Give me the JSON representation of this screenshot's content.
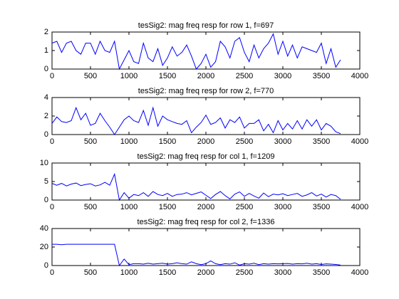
{
  "chart_data": [
    {
      "type": "line",
      "title": "tesSig2: mag freq resp for row 1, f=697",
      "x": [
        0,
        62.5,
        125,
        187.5,
        250,
        312.5,
        375,
        437.5,
        500,
        562.5,
        625,
        687.5,
        750,
        812.5,
        875,
        937.5,
        1000,
        1062.5,
        1125,
        1187.5,
        1250,
        1312.5,
        1375,
        1437.5,
        1500,
        1562.5,
        1625,
        1687.5,
        1750,
        1812.5,
        1875,
        1937.5,
        2000,
        2062.5,
        2125,
        2187.5,
        2250,
        2312.5,
        2375,
        2437.5,
        2500,
        2562.5,
        2625,
        2687.5,
        2750,
        2812.5,
        2875,
        2937.5,
        3000,
        3062.5,
        3125,
        3187.5,
        3250,
        3312.5,
        3375,
        3437.5,
        3500,
        3562.5,
        3625,
        3687.5,
        3750
      ],
      "series": [
        {
          "color": "#0000ff",
          "values": [
            1.4,
            1.5,
            0.9,
            1.4,
            1.5,
            1.0,
            0.8,
            1.4,
            1.4,
            0.8,
            1.5,
            1.0,
            0.9,
            1.5,
            0.0,
            0.5,
            1.0,
            0.4,
            0.3,
            1.4,
            0.6,
            0.4,
            1.1,
            0.2,
            0.6,
            1.2,
            0.7,
            0.9,
            1.3,
            0.7,
            0.0,
            0.3,
            0.8,
            0.1,
            0.4,
            1.5,
            1.2,
            0.6,
            1.5,
            1.7,
            0.9,
            0.4,
            1.3,
            0.6,
            1.1,
            1.4,
            1.9,
            0.8,
            1.5,
            0.7,
            1.3,
            0.6,
            1.2,
            1.1,
            1.0,
            0.9,
            1.4,
            0.3,
            1.1,
            0.1,
            0.5
          ]
        }
      ],
      "xlim": [
        0,
        4000
      ],
      "xticks": [
        0,
        500,
        1000,
        1500,
        2000,
        2500,
        3000,
        3500,
        4000
      ],
      "ylim": [
        0,
        2
      ],
      "yticks": [
        0,
        1,
        2
      ]
    },
    {
      "type": "line",
      "title": "tesSig2: mag freq resp for row 2, f=770",
      "x": [
        0,
        62.5,
        125,
        187.5,
        250,
        312.5,
        375,
        437.5,
        500,
        562.5,
        625,
        687.5,
        750,
        812.5,
        875,
        937.5,
        1000,
        1062.5,
        1125,
        1187.5,
        1250,
        1312.5,
        1375,
        1437.5,
        1500,
        1562.5,
        1625,
        1687.5,
        1750,
        1812.5,
        1875,
        1937.5,
        2000,
        2062.5,
        2125,
        2187.5,
        2250,
        2312.5,
        2375,
        2437.5,
        2500,
        2562.5,
        2625,
        2687.5,
        2750,
        2812.5,
        2875,
        2937.5,
        3000,
        3062.5,
        3125,
        3187.5,
        3250,
        3312.5,
        3375,
        3437.5,
        3500,
        3562.5,
        3625,
        3687.5,
        3750
      ],
      "series": [
        {
          "color": "#0000ff",
          "values": [
            1.2,
            1.9,
            1.4,
            1.3,
            1.5,
            2.9,
            1.6,
            2.3,
            1.0,
            1.2,
            2.3,
            1.5,
            0.8,
            0.0,
            0.8,
            1.6,
            2.0,
            1.5,
            1.3,
            2.6,
            1.0,
            2.9,
            0.9,
            2.0,
            1.6,
            1.4,
            1.2,
            1.1,
            1.5,
            0.2,
            0.8,
            1.3,
            2.1,
            1.1,
            1.3,
            1.8,
            0.7,
            1.6,
            1.3,
            1.9,
            0.7,
            1.2,
            1.2,
            1.6,
            0.4,
            1.1,
            0.2,
            1.5,
            0.5,
            1.2,
            0.6,
            1.5,
            0.6,
            1.6,
            0.9,
            1.6,
            0.5,
            1.2,
            0.9,
            0.3,
            0.1
          ]
        }
      ],
      "xlim": [
        0,
        4000
      ],
      "xticks": [
        0,
        500,
        1000,
        1500,
        2000,
        2500,
        3000,
        3500,
        4000
      ],
      "ylim": [
        0,
        4
      ],
      "yticks": [
        0,
        2,
        4
      ]
    },
    {
      "type": "line",
      "title": "tesSig2: mag freq resp for col 1, f=1209",
      "x": [
        0,
        62.5,
        125,
        187.5,
        250,
        312.5,
        375,
        437.5,
        500,
        562.5,
        625,
        687.5,
        750,
        812.5,
        875,
        937.5,
        1000,
        1062.5,
        1125,
        1187.5,
        1250,
        1312.5,
        1375,
        1437.5,
        1500,
        1562.5,
        1625,
        1687.5,
        1750,
        1812.5,
        1875,
        1937.5,
        2000,
        2062.5,
        2125,
        2187.5,
        2250,
        2312.5,
        2375,
        2437.5,
        2500,
        2562.5,
        2625,
        2687.5,
        2750,
        2812.5,
        2875,
        2937.5,
        3000,
        3062.5,
        3125,
        3187.5,
        3250,
        3312.5,
        3375,
        3437.5,
        3500,
        3562.5,
        3625,
        3687.5,
        3750
      ],
      "series": [
        {
          "color": "#0000ff",
          "values": [
            4.5,
            4.0,
            4.5,
            3.8,
            4.3,
            4.6,
            3.9,
            4.2,
            4.4,
            3.8,
            4.1,
            4.8,
            4.0,
            7.0,
            0.0,
            2.0,
            0.5,
            1.5,
            1.2,
            2.0,
            1.0,
            2.3,
            1.5,
            1.2,
            1.8,
            1.0,
            1.5,
            1.6,
            2.0,
            1.4,
            1.8,
            2.2,
            1.3,
            0.4,
            1.5,
            2.3,
            1.2,
            0.3,
            1.6,
            2.2,
            1.0,
            1.8,
            1.1,
            0.5,
            1.9,
            0.9,
            1.6,
            1.4,
            1.7,
            1.2,
            1.5,
            1.8,
            1.0,
            1.4,
            2.0,
            1.1,
            1.6,
            0.8,
            1.5,
            1.2,
            0.2
          ]
        }
      ],
      "xlim": [
        0,
        4000
      ],
      "xticks": [
        0,
        500,
        1000,
        1500,
        2000,
        2500,
        3000,
        3500,
        4000
      ],
      "ylim": [
        0,
        10
      ],
      "yticks": [
        0,
        5,
        10
      ]
    },
    {
      "type": "line",
      "title": "tesSig2: mag freq resp for col 2, f=1336",
      "x": [
        0,
        62.5,
        125,
        187.5,
        250,
        312.5,
        375,
        437.5,
        500,
        562.5,
        625,
        687.5,
        750,
        812.5,
        875,
        937.5,
        1000,
        1062.5,
        1125,
        1187.5,
        1250,
        1312.5,
        1375,
        1437.5,
        1500,
        1562.5,
        1625,
        1687.5,
        1750,
        1812.5,
        1875,
        1937.5,
        2000,
        2062.5,
        2125,
        2187.5,
        2250,
        2312.5,
        2375,
        2437.5,
        2500,
        2562.5,
        2625,
        2687.5,
        2750,
        2812.5,
        2875,
        2937.5,
        3000,
        3062.5,
        3125,
        3187.5,
        3250,
        3312.5,
        3375,
        3437.5,
        3500,
        3562.5,
        3625,
        3687.5,
        3750
      ],
      "series": [
        {
          "color": "#0000ff",
          "values": [
            23,
            23,
            22.5,
            23,
            23,
            23,
            23,
            23,
            23,
            23,
            23,
            23,
            23,
            23,
            0,
            7,
            1,
            2,
            2,
            1.5,
            2.5,
            1.5,
            2,
            2.5,
            1.5,
            2,
            3,
            2,
            1.5,
            4,
            2,
            1,
            2,
            5,
            2,
            1,
            2,
            1.5,
            3,
            0.5,
            2,
            1.5,
            2.5,
            1,
            2,
            1.5,
            2,
            1.8,
            2,
            2.2,
            1.5,
            2,
            1.8,
            2.5,
            1.5,
            2,
            1.2,
            1.8,
            1.5,
            1.2,
            0.5
          ]
        }
      ],
      "xlim": [
        0,
        4000
      ],
      "xticks": [
        0,
        500,
        1000,
        1500,
        2000,
        2500,
        3000,
        3500,
        4000
      ],
      "ylim": [
        0,
        40
      ],
      "yticks": [
        0,
        20,
        40
      ]
    }
  ]
}
